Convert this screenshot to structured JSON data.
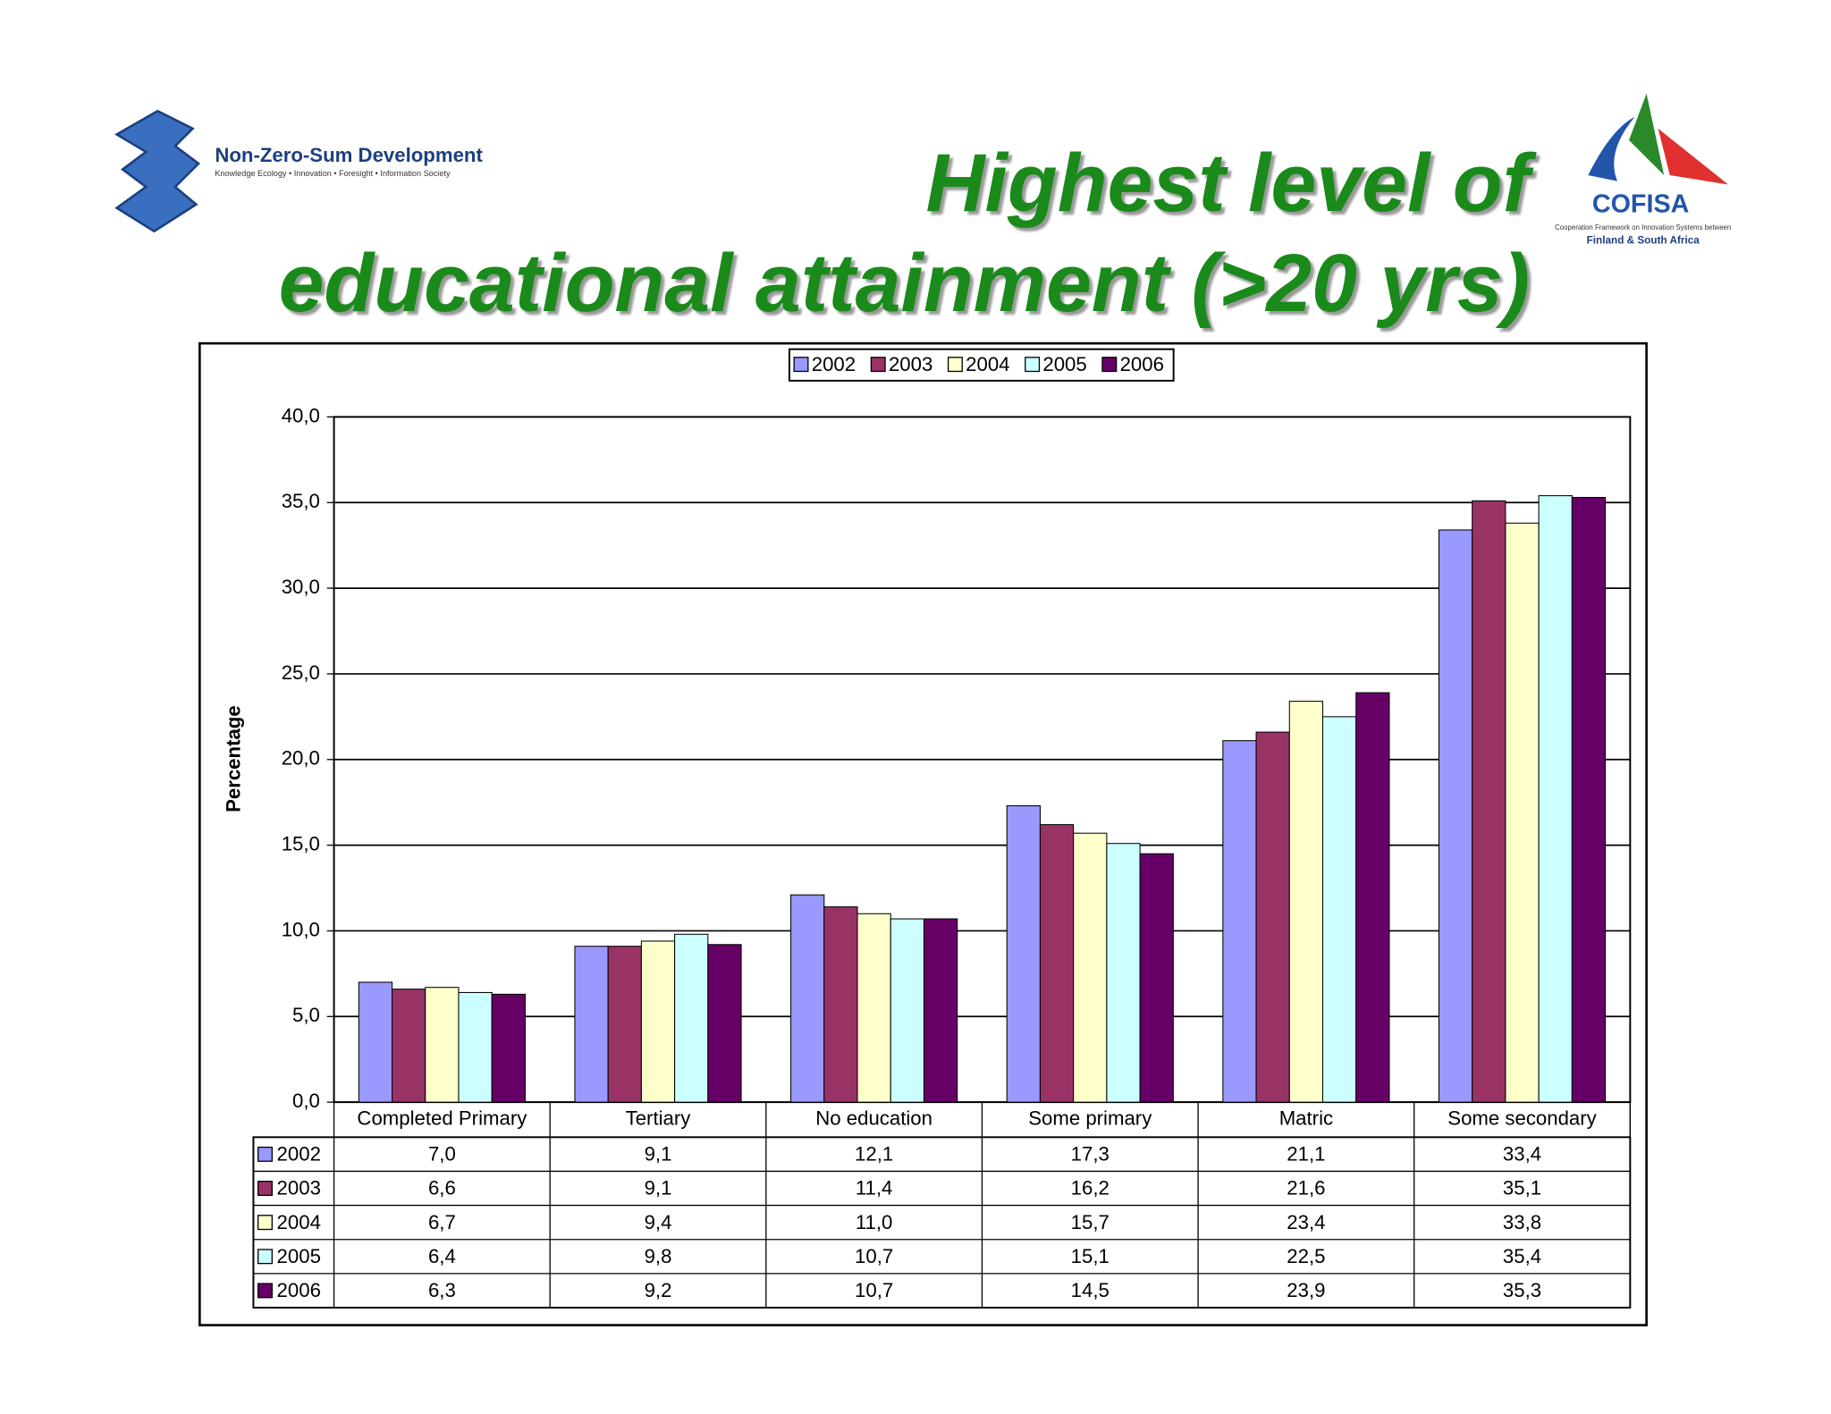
{
  "header": {
    "left_logo_name": "Non-Zero-Sum Development",
    "left_logo_tagline": "Knowledge Ecology • Innovation • Foresight • Information Society",
    "right_logo_name": "COFISA",
    "right_logo_line1": "Cooperation Framework on Innovation Systems between",
    "right_logo_line2": "Finland & South Africa"
  },
  "chart_data": {
    "type": "bar",
    "title_lines": [
      "Highest level of",
      "educational attainment (>20 yrs)"
    ],
    "y_label": "Percentage",
    "categories": [
      "Completed Primary",
      "Tertiary",
      "No education",
      "Some primary",
      "Matric",
      "Some secondary"
    ],
    "series": [
      {
        "name": "2002",
        "color": "#9999ff",
        "values": [
          7.0,
          9.1,
          12.1,
          17.3,
          21.1,
          33.4
        ],
        "value_labels": [
          "7,0",
          "9,1",
          "12,1",
          "17,3",
          "21,1",
          "33,4"
        ]
      },
      {
        "name": "2003",
        "color": "#993366",
        "values": [
          6.6,
          9.1,
          11.4,
          16.2,
          21.6,
          35.1
        ],
        "value_labels": [
          "6,6",
          "9,1",
          "11,4",
          "16,2",
          "21,6",
          "35,1"
        ]
      },
      {
        "name": "2004",
        "color": "#ffffcc",
        "values": [
          6.7,
          9.4,
          11.0,
          15.7,
          23.4,
          33.8
        ],
        "value_labels": [
          "6,7",
          "9,4",
          "11,0",
          "15,7",
          "23,4",
          "33,8"
        ]
      },
      {
        "name": "2005",
        "color": "#ccffff",
        "values": [
          6.4,
          9.8,
          10.7,
          15.1,
          22.5,
          35.4
        ],
        "value_labels": [
          "6,4",
          "9,8",
          "10,7",
          "15,1",
          "22,5",
          "35,4"
        ]
      },
      {
        "name": "2006",
        "color": "#660066",
        "values": [
          6.3,
          9.2,
          10.7,
          14.5,
          23.9,
          35.3
        ],
        "value_labels": [
          "6,3",
          "9,2",
          "10,7",
          "14,5",
          "23,9",
          "35,3"
        ]
      }
    ],
    "ylim": [
      0,
      40
    ],
    "yticks": [
      {
        "value": 0,
        "label": "0,0"
      },
      {
        "value": 5,
        "label": "5,0"
      },
      {
        "value": 10,
        "label": "10,0"
      },
      {
        "value": 15,
        "label": "15,0"
      },
      {
        "value": 20,
        "label": "20,0"
      },
      {
        "value": 25,
        "label": "25,0"
      },
      {
        "value": 30,
        "label": "30,0"
      },
      {
        "value": 35,
        "label": "35,0"
      },
      {
        "value": 40,
        "label": "40,0"
      }
    ],
    "grid": true,
    "legend": "top"
  }
}
